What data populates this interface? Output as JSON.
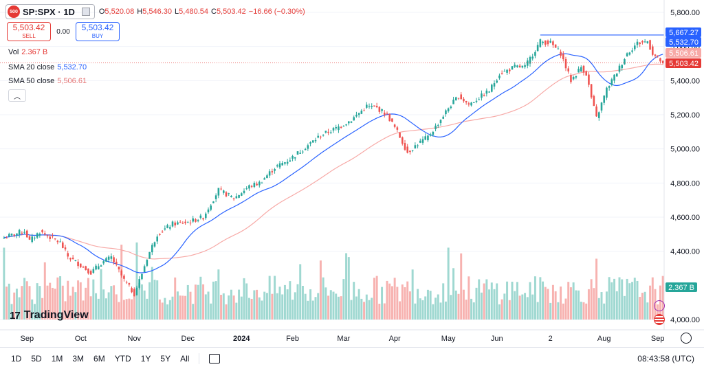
{
  "header": {
    "symbol": "SP:SPX · 1D",
    "logo_text": "500",
    "ohlc": [
      {
        "key": "O",
        "value": "5,520.08"
      },
      {
        "key": "H",
        "value": "5,546.30"
      },
      {
        "key": "L",
        "value": "5,480.54"
      },
      {
        "key": "C",
        "value": "5,503.42"
      },
      {
        "key": "",
        "value": "−16.66 (−0.30%)"
      }
    ]
  },
  "trade": {
    "sell_price": "5,503.42",
    "sell_label": "SELL",
    "spread": "0.00",
    "buy_price": "5,503.42",
    "buy_label": "BUY"
  },
  "legend": {
    "vol_label": "Vol",
    "vol_value": "2.367 B",
    "sma20_label": "SMA 20 close",
    "sma20_value": "5,532.70",
    "sma50_label": "SMA 50 close",
    "sma50_value": "5,506.61"
  },
  "brand": "TradingView",
  "brand_mark": "17",
  "ranges": [
    "1D",
    "5D",
    "1M",
    "3M",
    "6M",
    "YTD",
    "1Y",
    "5Y",
    "All"
  ],
  "clock": "08:43:58 (UTC)",
  "colors": {
    "up": "#26a69a",
    "down": "#ef5350",
    "sma20": "#2962ff",
    "sma50": "#f7a9a6",
    "vol_up": "#9fd8d1",
    "vol_down": "#f7b2b0",
    "price_label": "#e53935"
  },
  "chart_data": {
    "type": "candlestick",
    "yaxis": {
      "min": 3860,
      "max": 5880,
      "ticks": [
        "5,800.00",
        "5,600.00",
        "5,400.00",
        "5,200.00",
        "5,000.00",
        "4,800.00",
        "4,600.00",
        "4,400.00",
        "4,000.00"
      ],
      "tick_values": [
        5800,
        5600,
        5400,
        5200,
        5000,
        4800,
        4600,
        4400,
        4000
      ]
    },
    "xaxis": {
      "labels": [
        "Sep",
        "Oct",
        "Nov",
        "Dec",
        "2024",
        "Feb",
        "Mar",
        "Apr",
        "May",
        "Jun",
        "2",
        "Aug",
        "Sep"
      ],
      "label_index": [
        9,
        30,
        51,
        72,
        93,
        113,
        133,
        153,
        174,
        193,
        214,
        235,
        256
      ]
    },
    "price_labels": [
      {
        "value": 5667.27,
        "text": "5,667.27",
        "type": "high"
      },
      {
        "value": 5532.7,
        "text": "5,532.70",
        "type": "sma20"
      },
      {
        "value": 5506.61,
        "text": "5,506.61",
        "type": "sma50"
      },
      {
        "value": 5503.42,
        "text": "5,503.42",
        "type": "last"
      }
    ],
    "volume_label": "2.367 B",
    "anchors": [
      [
        0,
        4480
      ],
      [
        8,
        4520
      ],
      [
        10,
        4460
      ],
      [
        14,
        4515
      ],
      [
        22,
        4450
      ],
      [
        25,
        4370
      ],
      [
        34,
        4275
      ],
      [
        38,
        4330
      ],
      [
        42,
        4365
      ],
      [
        47,
        4230
      ],
      [
        51,
        4150
      ],
      [
        54,
        4270
      ],
      [
        56,
        4360
      ],
      [
        60,
        4500
      ],
      [
        66,
        4560
      ],
      [
        72,
        4570
      ],
      [
        78,
        4600
      ],
      [
        84,
        4760
      ],
      [
        90,
        4710
      ],
      [
        96,
        4780
      ],
      [
        100,
        4800
      ],
      [
        106,
        4890
      ],
      [
        112,
        4940
      ],
      [
        118,
        5010
      ],
      [
        124,
        5080
      ],
      [
        130,
        5120
      ],
      [
        136,
        5170
      ],
      [
        142,
        5250
      ],
      [
        146,
        5240
      ],
      [
        150,
        5200
      ],
      [
        154,
        5100
      ],
      [
        158,
        4980
      ],
      [
        162,
        5030
      ],
      [
        166,
        5070
      ],
      [
        170,
        5150
      ],
      [
        174,
        5240
      ],
      [
        178,
        5310
      ],
      [
        182,
        5260
      ],
      [
        186,
        5300
      ],
      [
        190,
        5340
      ],
      [
        194,
        5440
      ],
      [
        200,
        5480
      ],
      [
        204,
        5480
      ],
      [
        210,
        5630
      ],
      [
        214,
        5620
      ],
      [
        218,
        5560
      ],
      [
        222,
        5400
      ],
      [
        226,
        5480
      ],
      [
        228,
        5440
      ],
      [
        230,
        5300
      ],
      [
        232,
        5180
      ],
      [
        236,
        5350
      ],
      [
        240,
        5450
      ],
      [
        244,
        5560
      ],
      [
        248,
        5620
      ],
      [
        252,
        5630
      ],
      [
        254,
        5560
      ],
      [
        256,
        5530
      ],
      [
        258,
        5503.42
      ]
    ],
    "candle_count": 259,
    "last_close": 5503.42
  }
}
